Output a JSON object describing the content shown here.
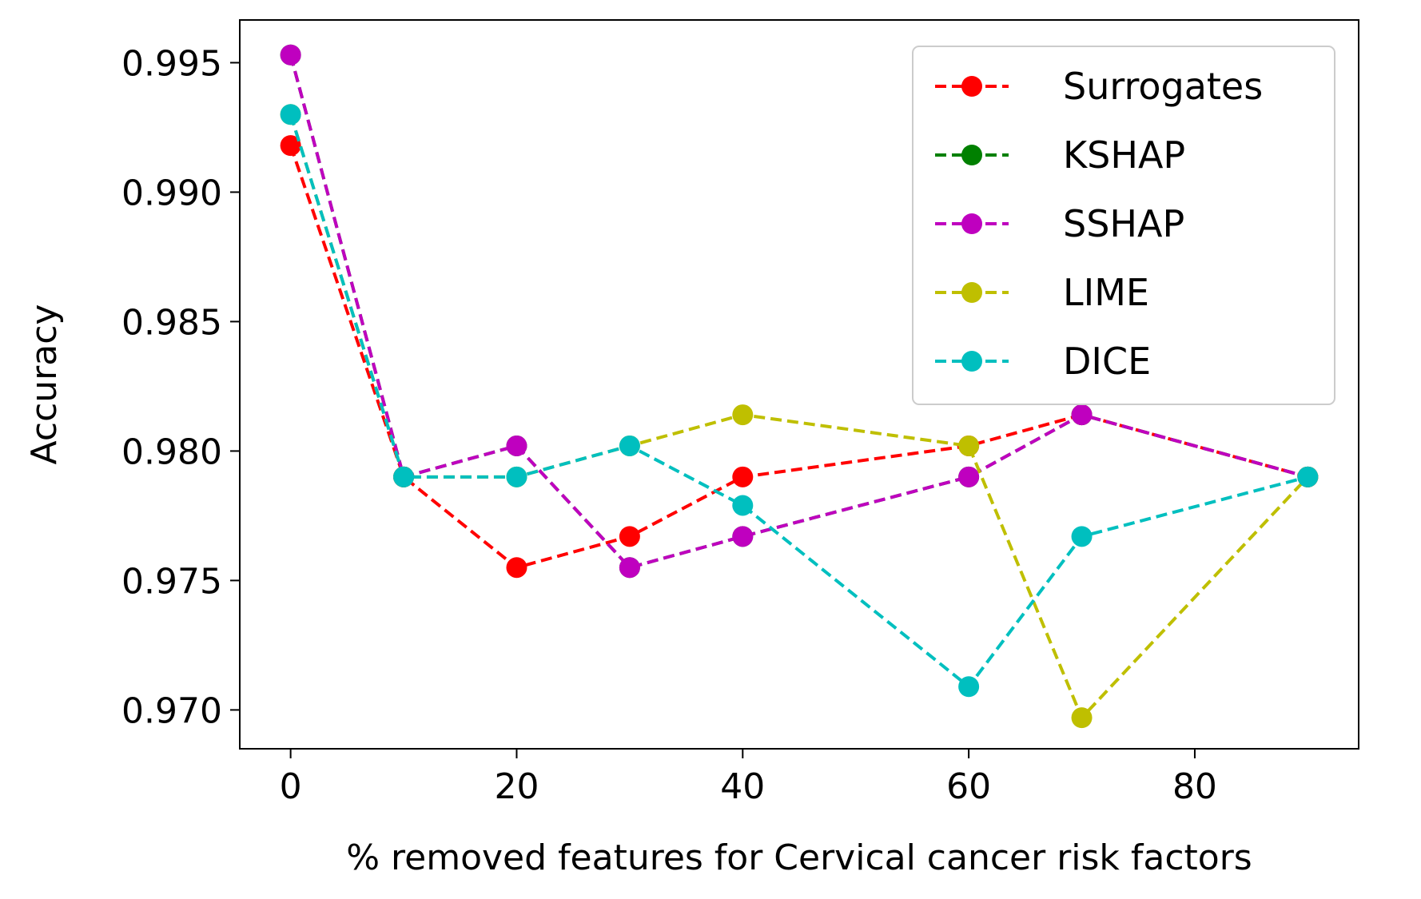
{
  "chart_data": {
    "type": "line",
    "title": "",
    "xlabel": "% removed features for Cervical cancer risk factors",
    "ylabel": "Accuracy",
    "xlim": [
      -4.5,
      94.5
    ],
    "ylim": [
      0.9685,
      0.99665
    ],
    "x_ticks": [
      0,
      20,
      40,
      60,
      80
    ],
    "y_ticks": [
      0.97,
      0.975,
      0.98,
      0.985,
      0.99,
      0.995
    ],
    "x_tick_labels": [
      "0",
      "20",
      "40",
      "60",
      "80"
    ],
    "y_tick_labels": [
      "0.970",
      "0.975",
      "0.980",
      "0.985",
      "0.990",
      "0.995"
    ],
    "grid": false,
    "legend_position": "top-right",
    "x": [
      0,
      10,
      20,
      30,
      40,
      60,
      70,
      90
    ],
    "series": [
      {
        "name": "Surrogates",
        "color": "#ff0000",
        "values": [
          0.9918,
          0.979,
          0.9755,
          0.9767,
          0.979,
          0.9802,
          0.9814,
          0.979
        ]
      },
      {
        "name": "KSHAP",
        "color": "#008000",
        "values": [
          0.9953,
          0.979,
          0.9802,
          0.9755,
          0.9767,
          0.979,
          0.9814,
          0.979
        ]
      },
      {
        "name": "SSHAP",
        "color": "#bf00bf",
        "values": [
          0.9953,
          0.979,
          0.9802,
          0.9755,
          0.9767,
          0.979,
          0.9814,
          0.979
        ]
      },
      {
        "name": "LIME",
        "color": "#bfbf00",
        "values": [
          0.993,
          0.979,
          0.979,
          0.9802,
          0.9814,
          0.9802,
          0.9697,
          0.979
        ]
      },
      {
        "name": "DICE",
        "color": "#00bfbf",
        "values": [
          0.993,
          0.979,
          0.979,
          0.9802,
          0.9779,
          0.9709,
          0.9767,
          0.979
        ]
      }
    ]
  }
}
